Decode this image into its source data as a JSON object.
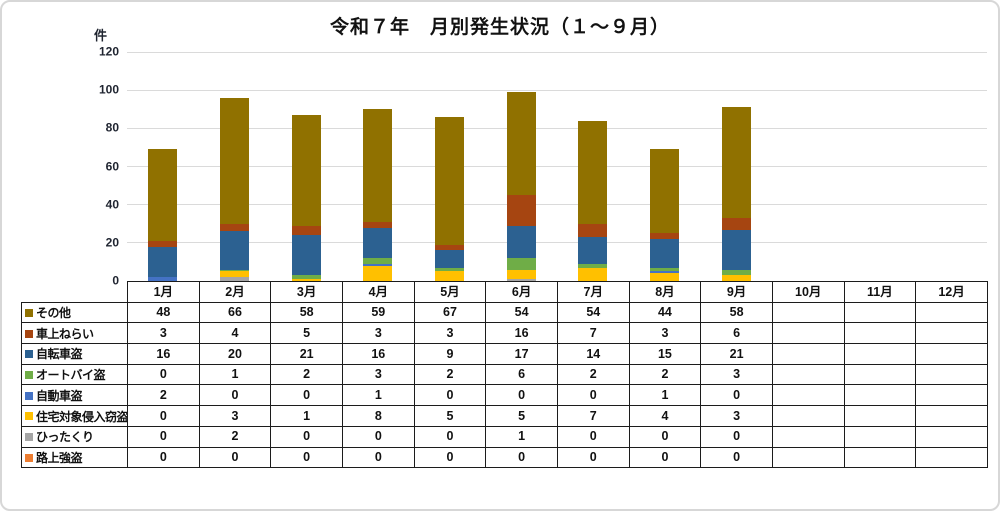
{
  "chart_data": {
    "type": "bar",
    "stacked": true,
    "title": "令和７年　月別発生状況（１～９月）",
    "ylabel": "件",
    "ylim": [
      0,
      120
    ],
    "yticks": [
      0,
      20,
      40,
      60,
      80,
      100,
      120
    ],
    "grid": "horizontal",
    "legend_position": "table-row-headers-left",
    "categories": [
      "1月",
      "2月",
      "3月",
      "4月",
      "5月",
      "6月",
      "7月",
      "8月",
      "9月",
      "10月",
      "11月",
      "12月"
    ],
    "series": [
      {
        "name": "その他",
        "color": "#907100",
        "values": [
          48,
          66,
          58,
          59,
          67,
          54,
          54,
          44,
          58,
          "",
          "",
          ""
        ]
      },
      {
        "name": "車上ねらい",
        "color": "#A64511",
        "values": [
          3,
          4,
          5,
          3,
          3,
          16,
          7,
          3,
          6,
          "",
          "",
          ""
        ]
      },
      {
        "name": "自転車盗",
        "color": "#2C6191",
        "values": [
          16,
          20,
          21,
          16,
          9,
          17,
          14,
          15,
          21,
          "",
          "",
          ""
        ]
      },
      {
        "name": "オートバイ盗",
        "color": "#6FAD47",
        "values": [
          0,
          1,
          2,
          3,
          2,
          6,
          2,
          2,
          3,
          "",
          "",
          ""
        ]
      },
      {
        "name": "自動車盗",
        "color": "#4472C4",
        "values": [
          2,
          0,
          0,
          1,
          0,
          0,
          0,
          1,
          0,
          "",
          "",
          ""
        ]
      },
      {
        "name": "住宅対象侵入窃盗",
        "color": "#FFC000",
        "values": [
          0,
          3,
          1,
          8,
          5,
          5,
          7,
          4,
          3,
          "",
          "",
          ""
        ]
      },
      {
        "name": "ひったくり",
        "color": "#A6A6A6",
        "values": [
          0,
          2,
          0,
          0,
          0,
          1,
          0,
          0,
          0,
          "",
          "",
          ""
        ]
      },
      {
        "name": "路上強盗",
        "color": "#ED7D31",
        "values": [
          0,
          0,
          0,
          0,
          0,
          0,
          0,
          0,
          0,
          "",
          "",
          ""
        ]
      }
    ],
    "stack_order_bottom_to_top": [
      "路上強盗",
      "ひったくり",
      "住宅対象侵入窃盗",
      "自動車盗",
      "オートバイ盗",
      "自転車盗",
      "車上ねらい",
      "その他"
    ],
    "colors": {
      "gridline": "#dadada",
      "table_border": "#1c1c1c",
      "axis_text": "#1f2430"
    }
  }
}
